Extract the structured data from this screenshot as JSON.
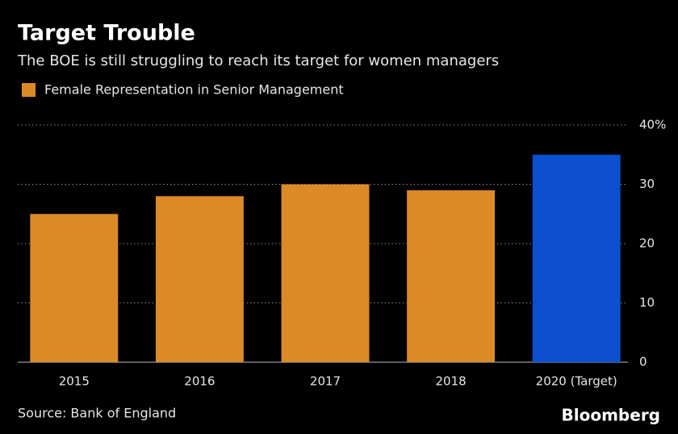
{
  "chart_data": {
    "type": "bar",
    "title": "Target Trouble",
    "subtitle": "The BOE is still struggling to reach its target for women managers",
    "categories": [
      "2015",
      "2016",
      "2017",
      "2018",
      "2020 (Target)"
    ],
    "series": [
      {
        "name": "Female Representation in Senior Management",
        "values": [
          25,
          28,
          30,
          29,
          35
        ],
        "colors": [
          "#dc8a27",
          "#dc8a27",
          "#dc8a27",
          "#dc8a27",
          "#0c4fcf"
        ]
      }
    ],
    "ylim": [
      0,
      40
    ],
    "yticks": [
      0,
      10,
      20,
      30,
      {
        "value": 40,
        "label": "40%"
      }
    ],
    "grid": true,
    "source": "Source: Bank of England",
    "brand": "Bloomberg"
  }
}
